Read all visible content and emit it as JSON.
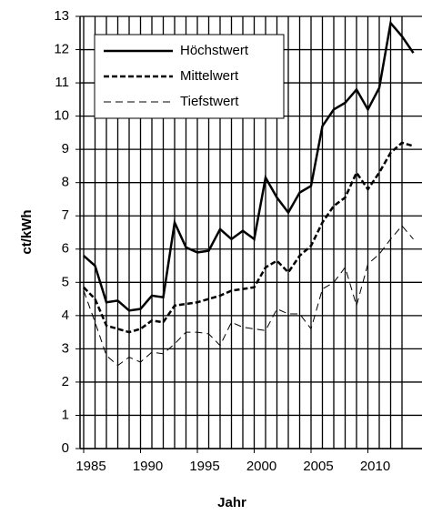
{
  "chart_data": {
    "type": "line",
    "x_label": "Jahr",
    "y_label": "ct/kWh",
    "x": [
      1985,
      1986,
      1987,
      1988,
      1989,
      1990,
      1991,
      1992,
      1993,
      1994,
      1995,
      1996,
      1997,
      1998,
      1999,
      2000,
      2001,
      2002,
      2003,
      2004,
      2005,
      2006,
      2007,
      2008,
      2009,
      2010,
      2011,
      2012,
      2013,
      2014
    ],
    "series": [
      {
        "name": "Höchstwert",
        "color": "#000000",
        "dash": "solid",
        "values": [
          5.8,
          5.5,
          4.4,
          4.45,
          4.15,
          4.2,
          4.6,
          4.55,
          6.8,
          6.05,
          5.9,
          5.95,
          6.6,
          6.3,
          6.55,
          6.3,
          8.15,
          7.55,
          7.1,
          7.7,
          7.9,
          9.7,
          10.2,
          10.4,
          10.8,
          10.2,
          10.85,
          12.8,
          12.4,
          11.9
        ]
      },
      {
        "name": "Mittelwert",
        "color": "#000000",
        "dash": "bold-dashed",
        "values": [
          4.85,
          4.5,
          3.7,
          3.6,
          3.5,
          3.6,
          3.85,
          3.8,
          4.3,
          4.35,
          4.4,
          4.5,
          4.6,
          4.75,
          4.8,
          4.85,
          5.45,
          5.65,
          5.3,
          5.8,
          6.1,
          6.8,
          7.3,
          7.55,
          8.3,
          7.8,
          8.3,
          8.9,
          9.2,
          9.1
        ]
      },
      {
        "name": "Tiefstwert",
        "color": "#000000",
        "dash": "thin-dashed",
        "values": [
          4.75,
          3.8,
          2.8,
          2.5,
          2.75,
          2.6,
          2.9,
          2.85,
          3.15,
          3.5,
          3.5,
          3.45,
          3.1,
          3.8,
          3.65,
          3.6,
          3.55,
          4.2,
          4.05,
          4.05,
          3.6,
          4.8,
          5.0,
          5.45,
          4.3,
          5.55,
          5.85,
          6.3,
          6.7,
          6.3
        ]
      }
    ],
    "xlim": [
      1985,
      2013.8
    ],
    "xticks": [
      1985,
      1990,
      1995,
      2000,
      2005,
      2010
    ],
    "x_grid_step": 1,
    "ylim": [
      0,
      13
    ],
    "yticks": [
      0,
      1,
      2,
      3,
      4,
      5,
      6,
      7,
      8,
      9,
      10,
      11,
      12,
      13
    ],
    "grid": true,
    "legend": "upper left"
  }
}
